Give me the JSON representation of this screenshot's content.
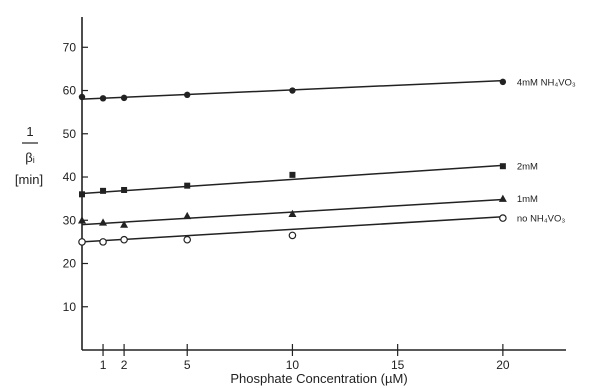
{
  "chart_data": {
    "type": "line",
    "title": "",
    "xlabel": "Phosphate Concentration (µM)",
    "ylabel": {
      "numerator": "1",
      "denominator": "βᵢ",
      "unit": "[min]"
    },
    "xlim": [
      0,
      23
    ],
    "ylim": [
      0,
      77
    ],
    "xticks": [
      1,
      2,
      5,
      10,
      15,
      20
    ],
    "yticks": [
      10,
      20,
      30,
      40,
      50,
      60,
      70
    ],
    "grid": false,
    "legend": "labels at line ends",
    "series": [
      {
        "name": "4mM NH₄VO₃",
        "marker": "filled-circle",
        "x": [
          0,
          1,
          2,
          5,
          10,
          20
        ],
        "y": [
          58.5,
          58.2,
          58.3,
          59,
          60,
          62
        ],
        "fit": [
          [
            0,
            58
          ],
          [
            20,
            62.3
          ]
        ]
      },
      {
        "name": "2mM",
        "marker": "filled-square",
        "x": [
          0,
          1,
          2,
          5,
          10,
          20
        ],
        "y": [
          36,
          36.8,
          37,
          38,
          40.5,
          42.5
        ],
        "fit": [
          [
            0,
            36.2
          ],
          [
            20,
            42.7
          ]
        ]
      },
      {
        "name": "1mM",
        "marker": "filled-triangle",
        "x": [
          0,
          1,
          2,
          5,
          10,
          20
        ],
        "y": [
          30,
          29.5,
          29,
          31,
          31.5,
          35
        ],
        "fit": [
          [
            0,
            29
          ],
          [
            20,
            34.8
          ]
        ]
      },
      {
        "name": "no NH₄VO₃",
        "marker": "open-circle",
        "x": [
          0,
          1,
          2,
          5,
          10,
          20
        ],
        "y": [
          25,
          25,
          25.5,
          25.5,
          26.5,
          30.5
        ],
        "fit": [
          [
            0,
            25
          ],
          [
            20,
            30.8
          ]
        ]
      }
    ]
  }
}
